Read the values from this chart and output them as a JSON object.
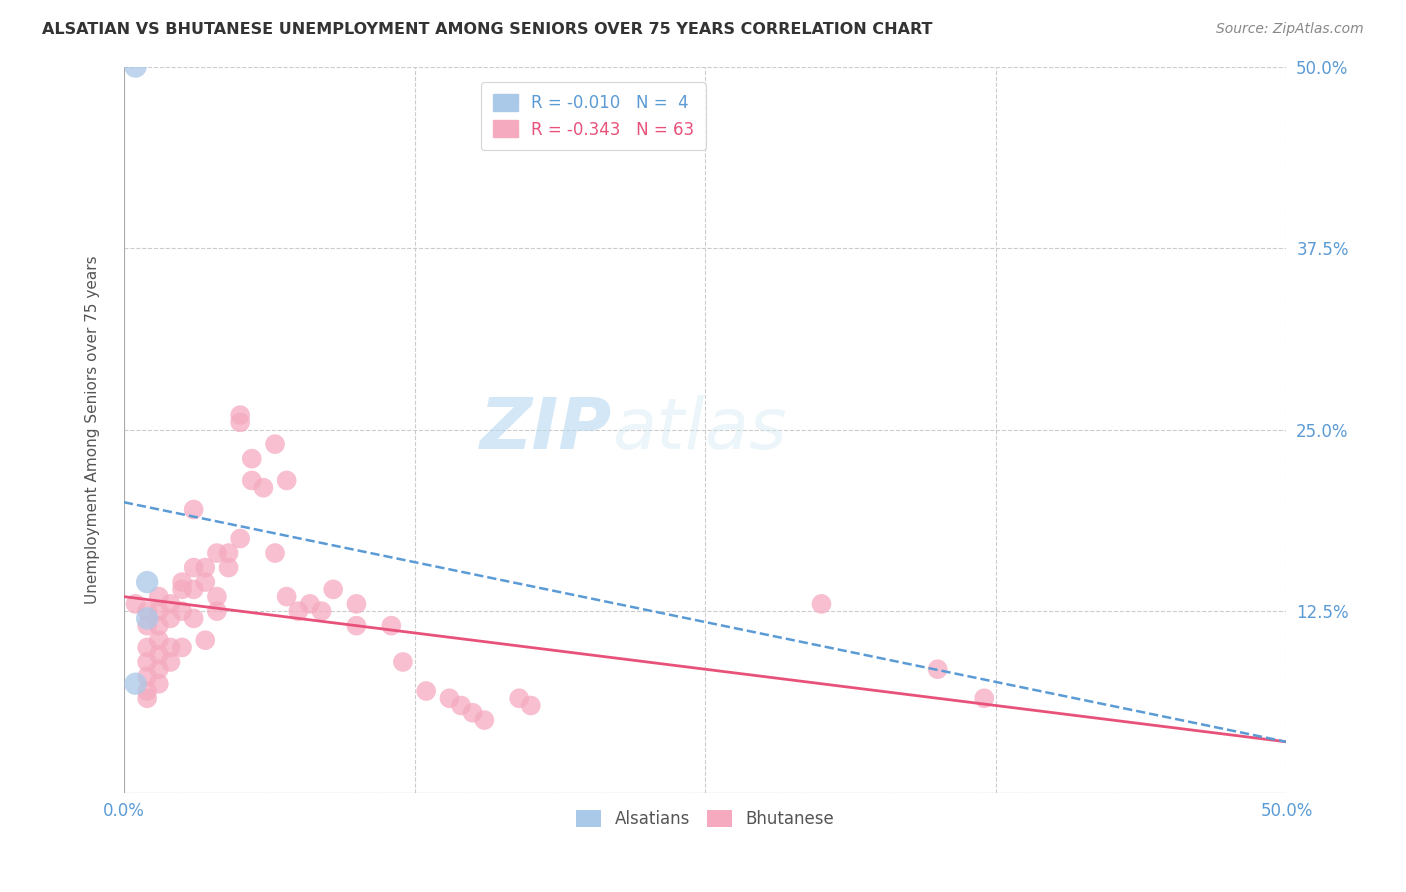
{
  "title": "ALSATIAN VS BHUTANESE UNEMPLOYMENT AMONG SENIORS OVER 75 YEARS CORRELATION CHART",
  "source": "Source: ZipAtlas.com",
  "ylabel": "Unemployment Among Seniors over 75 years",
  "xlim": [
    0.0,
    0.5
  ],
  "ylim": [
    0.0,
    0.5
  ],
  "xtick_vals": [
    0.0,
    0.125,
    0.25,
    0.375,
    0.5
  ],
  "ytick_vals": [
    0.0,
    0.125,
    0.25,
    0.375,
    0.5
  ],
  "alsatian_R": "-0.010",
  "alsatian_N": "4",
  "bhutanese_R": "-0.343",
  "bhutanese_N": "63",
  "alsatian_color": "#aac8e8",
  "bhutanese_color": "#f5aabf",
  "alsatian_line_color": "#5b9bd5",
  "bhutanese_line_color": "#e8527a",
  "alsatian_points": [
    [
      0.005,
      0.5
    ],
    [
      0.01,
      0.145
    ],
    [
      0.01,
      0.12
    ],
    [
      0.005,
      0.075
    ]
  ],
  "bhutanese_points": [
    [
      0.005,
      0.13
    ],
    [
      0.01,
      0.125
    ],
    [
      0.01,
      0.115
    ],
    [
      0.01,
      0.1
    ],
    [
      0.01,
      0.09
    ],
    [
      0.01,
      0.08
    ],
    [
      0.01,
      0.07
    ],
    [
      0.01,
      0.065
    ],
    [
      0.015,
      0.135
    ],
    [
      0.015,
      0.125
    ],
    [
      0.015,
      0.115
    ],
    [
      0.015,
      0.105
    ],
    [
      0.015,
      0.095
    ],
    [
      0.015,
      0.085
    ],
    [
      0.015,
      0.075
    ],
    [
      0.02,
      0.13
    ],
    [
      0.02,
      0.12
    ],
    [
      0.02,
      0.1
    ],
    [
      0.02,
      0.09
    ],
    [
      0.025,
      0.145
    ],
    [
      0.025,
      0.14
    ],
    [
      0.025,
      0.125
    ],
    [
      0.025,
      0.1
    ],
    [
      0.03,
      0.195
    ],
    [
      0.03,
      0.155
    ],
    [
      0.03,
      0.14
    ],
    [
      0.03,
      0.12
    ],
    [
      0.035,
      0.155
    ],
    [
      0.035,
      0.145
    ],
    [
      0.035,
      0.105
    ],
    [
      0.04,
      0.165
    ],
    [
      0.04,
      0.135
    ],
    [
      0.04,
      0.125
    ],
    [
      0.045,
      0.165
    ],
    [
      0.045,
      0.155
    ],
    [
      0.05,
      0.26
    ],
    [
      0.05,
      0.255
    ],
    [
      0.05,
      0.175
    ],
    [
      0.055,
      0.23
    ],
    [
      0.055,
      0.215
    ],
    [
      0.06,
      0.21
    ],
    [
      0.065,
      0.24
    ],
    [
      0.065,
      0.165
    ],
    [
      0.07,
      0.215
    ],
    [
      0.07,
      0.135
    ],
    [
      0.075,
      0.125
    ],
    [
      0.08,
      0.13
    ],
    [
      0.085,
      0.125
    ],
    [
      0.09,
      0.14
    ],
    [
      0.1,
      0.13
    ],
    [
      0.1,
      0.115
    ],
    [
      0.115,
      0.115
    ],
    [
      0.12,
      0.09
    ],
    [
      0.13,
      0.07
    ],
    [
      0.14,
      0.065
    ],
    [
      0.145,
      0.06
    ],
    [
      0.15,
      0.055
    ],
    [
      0.155,
      0.05
    ],
    [
      0.17,
      0.065
    ],
    [
      0.175,
      0.06
    ],
    [
      0.3,
      0.13
    ],
    [
      0.35,
      0.085
    ],
    [
      0.37,
      0.065
    ]
  ],
  "bhu_line_x0": 0.0,
  "bhu_line_y0": 0.135,
  "bhu_line_x1": 0.5,
  "bhu_line_y1": 0.035,
  "als_line_x0": 0.0,
  "als_line_y0": 0.2,
  "als_line_x1": 0.5,
  "als_line_y1": 0.035
}
